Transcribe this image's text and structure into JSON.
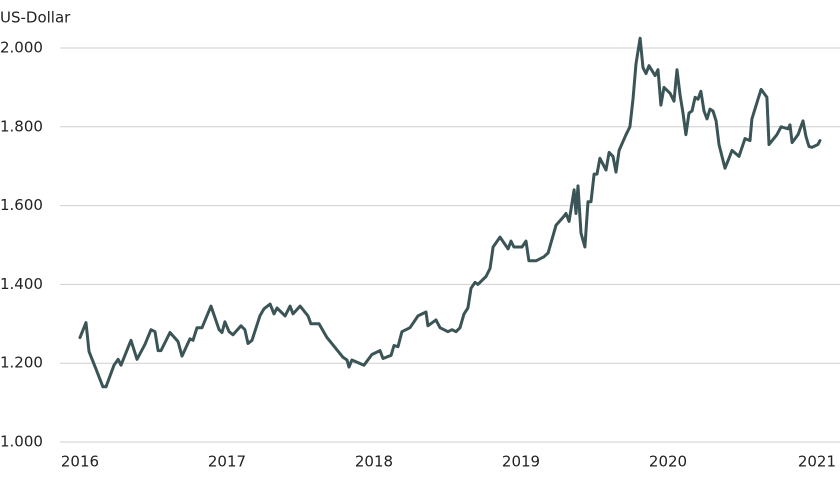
{
  "chart_data": {
    "type": "line",
    "title": "US-Dollar",
    "xlim": [
      2015.864,
      2021.17
    ],
    "xticks": [
      2016,
      2017,
      2018,
      2019,
      2020,
      2021
    ],
    "ylim": [
      1000,
      2000
    ],
    "yticks": [
      {
        "value": 1000,
        "label": "1.000"
      },
      {
        "value": 1200,
        "label": "1.200"
      },
      {
        "value": 1400,
        "label": "1.400"
      },
      {
        "value": 1600,
        "label": "1.600"
      },
      {
        "value": 1800,
        "label": "1.800"
      },
      {
        "value": 2000,
        "label": "2.000"
      }
    ],
    "grid": true,
    "series": [
      {
        "name": "US-Dollar",
        "color": "#3b5456",
        "x": [
          2016.0,
          2016.041,
          2016.061,
          2016.109,
          2016.156,
          2016.177,
          2016.231,
          2016.259,
          2016.279,
          2016.327,
          2016.347,
          2016.388,
          2016.442,
          2016.483,
          2016.51,
          2016.531,
          2016.551,
          2016.612,
          2016.667,
          2016.694,
          2016.748,
          2016.769,
          2016.796,
          2016.83,
          2016.891,
          2016.946,
          2016.966,
          2016.986,
          2017.014,
          2017.041,
          2017.095,
          2017.122,
          2017.143,
          2017.17,
          2017.224,
          2017.252,
          2017.293,
          2017.32,
          2017.34,
          2017.395,
          2017.429,
          2017.449,
          2017.497,
          2017.551,
          2017.571,
          2017.626,
          2017.68,
          2017.735,
          2017.789,
          2017.816,
          2017.83,
          2017.85,
          2017.932,
          2017.986,
          2018.041,
          2018.061,
          2018.116,
          2018.136,
          2018.163,
          2018.19,
          2018.245,
          2018.299,
          2018.354,
          2018.367,
          2018.422,
          2018.449,
          2018.503,
          2018.531,
          2018.558,
          2018.585,
          2018.612,
          2018.639,
          2018.66,
          2018.687,
          2018.707,
          2018.762,
          2018.789,
          2018.81,
          2018.857,
          2018.912,
          2018.932,
          2018.952,
          2019.007,
          2019.034,
          2019.054,
          2019.102,
          2019.156,
          2019.184,
          2019.238,
          2019.286,
          2019.306,
          2019.327,
          2019.361,
          2019.374,
          2019.388,
          2019.408,
          2019.435,
          2019.456,
          2019.476,
          2019.497,
          2019.517,
          2019.537,
          2019.558,
          2019.578,
          2019.599,
          2019.626,
          2019.646,
          2019.667,
          2019.714,
          2019.741,
          2019.762,
          2019.782,
          2019.81,
          2019.83,
          2019.85,
          2019.871,
          2019.912,
          2019.932,
          2019.952,
          2019.973,
          2020.014,
          2020.041,
          2020.061,
          2020.082,
          2020.102,
          2020.122,
          2020.143,
          2020.163,
          2020.184,
          2020.204,
          2020.224,
          2020.245,
          2020.265,
          2020.286,
          2020.306,
          2020.327,
          2020.347,
          2020.388,
          2020.415,
          2020.435,
          2020.483,
          2020.524,
          2020.558,
          2020.571,
          2020.612,
          2020.633,
          2020.673,
          2020.687,
          2020.741,
          2020.769,
          2020.816,
          2020.83,
          2020.844,
          2020.884,
          2020.918,
          2020.939,
          2020.959,
          2020.98,
          2021.02,
          2021.034
        ],
        "values": [
          1265,
          1303,
          1230,
          1185,
          1140,
          1140,
          1195,
          1210,
          1195,
          1240,
          1258,
          1210,
          1248,
          1285,
          1280,
          1232,
          1232,
          1278,
          1255,
          1218,
          1262,
          1258,
          1290,
          1290,
          1345,
          1285,
          1278,
          1305,
          1280,
          1272,
          1295,
          1285,
          1250,
          1258,
          1320,
          1338,
          1350,
          1325,
          1340,
          1320,
          1345,
          1325,
          1345,
          1320,
          1300,
          1300,
          1265,
          1240,
          1215,
          1208,
          1190,
          1208,
          1195,
          1222,
          1232,
          1212,
          1220,
          1245,
          1242,
          1280,
          1290,
          1320,
          1330,
          1295,
          1310,
          1290,
          1280,
          1285,
          1280,
          1290,
          1325,
          1340,
          1390,
          1405,
          1400,
          1420,
          1440,
          1495,
          1520,
          1490,
          1510,
          1495,
          1495,
          1510,
          1460,
          1460,
          1470,
          1480,
          1550,
          1570,
          1580,
          1560,
          1640,
          1580,
          1650,
          1530,
          1495,
          1610,
          1610,
          1680,
          1680,
          1720,
          1705,
          1690,
          1735,
          1725,
          1685,
          1740,
          1780,
          1800,
          1870,
          1960,
          2025,
          1950,
          1935,
          1955,
          1930,
          1945,
          1855,
          1900,
          1885,
          1865,
          1945,
          1880,
          1835,
          1780,
          1835,
          1840,
          1875,
          1870,
          1890,
          1840,
          1820,
          1845,
          1840,
          1815,
          1755,
          1695,
          1720,
          1740,
          1725,
          1770,
          1765,
          1820,
          1870,
          1895,
          1875,
          1755,
          1780,
          1800,
          1795,
          1805,
          1760,
          1780,
          1815,
          1775,
          1750,
          1748,
          1755,
          1765
        ]
      }
    ]
  }
}
